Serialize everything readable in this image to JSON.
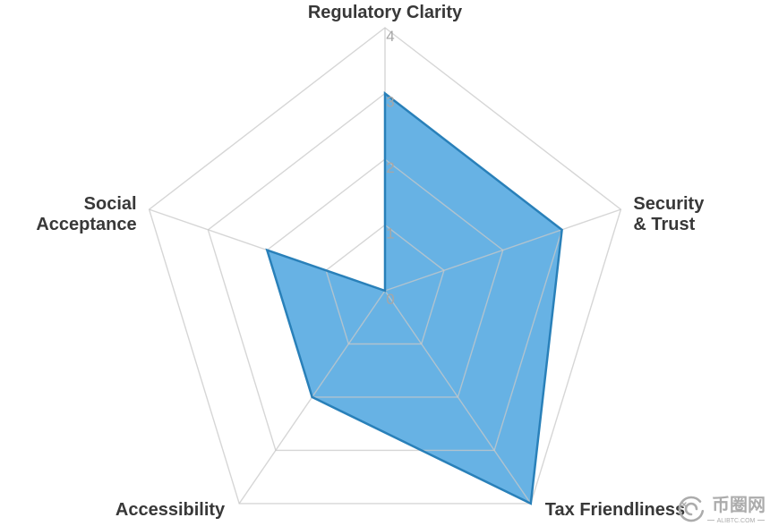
{
  "chart_data": {
    "type": "radar",
    "categories": [
      [
        "Regulatory Clarity"
      ],
      [
        "Security",
        "& Trust"
      ],
      [
        "Tax Friendliness"
      ],
      [
        "Accessibility"
      ],
      [
        "Social",
        "Acceptance"
      ]
    ],
    "values": [
      3,
      3,
      4,
      2,
      2
    ],
    "rlim": [
      0,
      4
    ],
    "ticks": [
      0,
      1,
      2,
      3,
      4
    ],
    "grid": true,
    "legend": "none",
    "colors": {
      "fill": "#3498db",
      "line": "#2980b9",
      "grid": "#c8c8c8",
      "tick_label": "#a6a6a6",
      "category_label": "#383838"
    }
  },
  "watermark": {
    "name": "币圈网",
    "site": "ALIBTC.COM",
    "color": "#acacac"
  }
}
